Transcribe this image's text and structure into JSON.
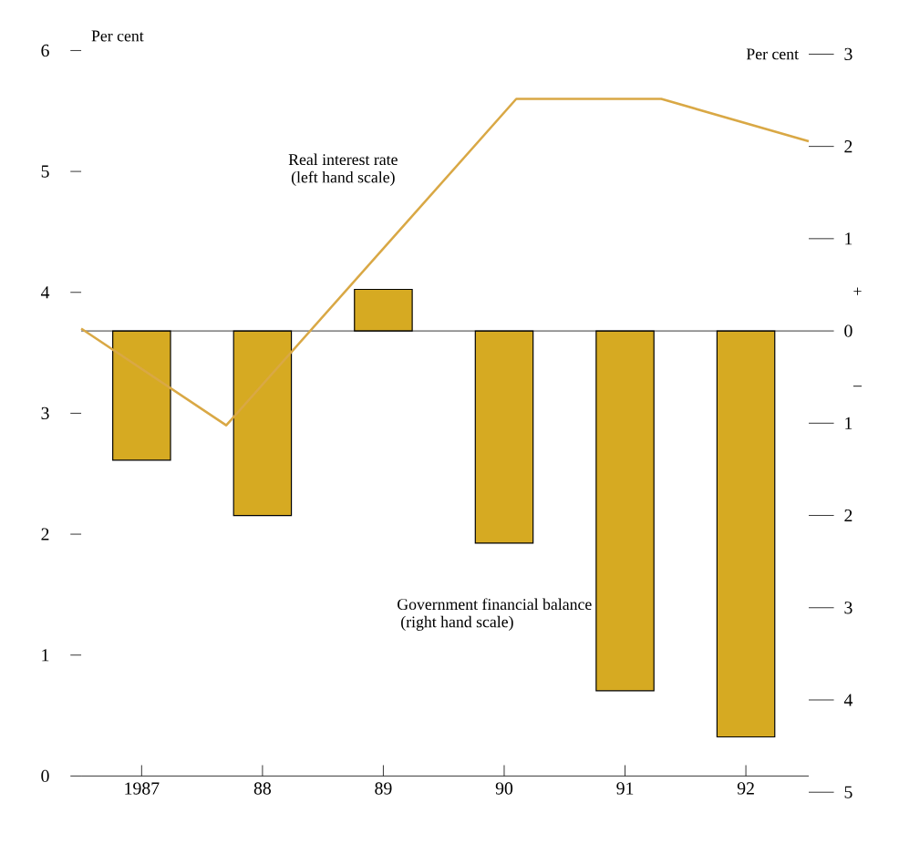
{
  "chart_data": {
    "type": "bar",
    "xlim": [
      1986.5,
      1992.52
    ],
    "xticks": [
      {
        "value": 1987,
        "label": "1987"
      },
      {
        "value": 1988,
        "label": "88"
      },
      {
        "value": 1989,
        "label": "89"
      },
      {
        "value": 1990,
        "label": "90"
      },
      {
        "value": 1991,
        "label": "91"
      },
      {
        "value": 1992,
        "label": "92"
      }
    ],
    "ylim": [
      0,
      6
    ],
    "yticks": [
      0,
      1,
      2,
      3,
      4,
      5,
      6
    ],
    "y2lim": [
      -5,
      3
    ],
    "y2ticks": [
      {
        "value": 3,
        "label": "3"
      },
      {
        "value": 2,
        "label": "2"
      },
      {
        "value": 1,
        "label": "1"
      },
      {
        "value": 0,
        "label": "0"
      },
      {
        "value": -1,
        "label": "1"
      },
      {
        "value": -2,
        "label": "2"
      },
      {
        "value": -3,
        "label": "3"
      },
      {
        "value": -4,
        "label": "4"
      },
      {
        "value": -5,
        "label": "5"
      }
    ],
    "ylabel": "Per cent",
    "y2label": "Per cent",
    "series": [
      {
        "name": "Government financial balance",
        "axis": "y2",
        "color": "#d6aa22",
        "x": [
          1987,
          1988,
          1989,
          1990,
          1991,
          1992
        ],
        "values": [
          -1.4,
          -2.0,
          0.45,
          -2.3,
          -3.9,
          -4.4
        ]
      },
      {
        "name": "Real interest rate",
        "type": "line",
        "color": "#d9a845",
        "x": [
          1986.5,
          1987.7,
          1990.1,
          1991.3,
          1992.52
        ],
        "values": [
          3.7,
          2.9,
          5.6,
          5.6,
          5.25
        ]
      }
    ],
    "ref_lines": [
      {
        "axis": "y2",
        "value": 0,
        "color": "#000000"
      }
    ],
    "annotations": [
      "(left hand scale)",
      "(right hand scale)",
      "+",
      "–"
    ]
  }
}
